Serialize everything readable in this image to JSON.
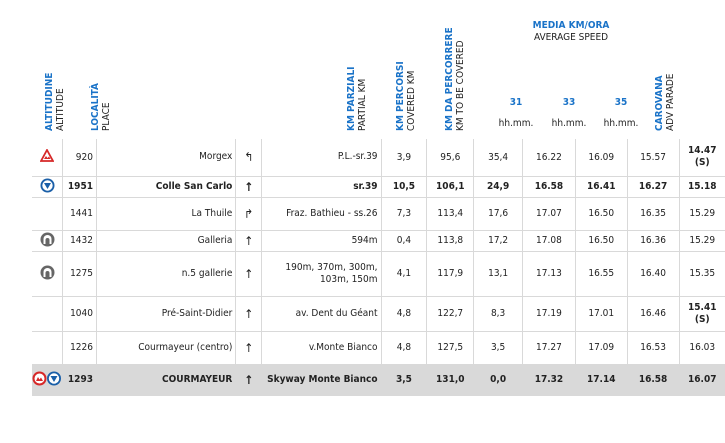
{
  "headers": {
    "altitude": {
      "it": "ALTITUDINE",
      "en": "ALTITUDE"
    },
    "place": {
      "it": "LOCALITÀ",
      "en": "PLACE"
    },
    "partial": {
      "it": "KM PARZIALI",
      "en": "PARTIAL KM"
    },
    "covered": {
      "it": "KM PERCORSI",
      "en": "COVERED KM"
    },
    "tobe": {
      "it": "KM DA PERCORRERE",
      "en": "KM TO BE COVERED"
    },
    "caravan": {
      "it": "CAROVANA",
      "en": "ADV PARADE"
    },
    "speed_title_it": "MEDIA KM/ORA",
    "speed_title_en": "AVERAGE SPEED",
    "speeds": [
      "31",
      "33",
      "35"
    ],
    "speed_unit": "hh.mm."
  },
  "rows": [
    {
      "icon": "warning-icon",
      "alt": "920",
      "place": "Morgex",
      "dir": "↰",
      "road": "P.L.-sr.39",
      "partial": "3,9",
      "covered": "95,6",
      "tobe": "35,4",
      "s31": "16.22",
      "s33": "16.09",
      "s35": "15.57",
      "caravan": "14.47",
      "caravan2": "(S)",
      "style": ""
    },
    {
      "icon": "gpm-icon",
      "alt": "1951",
      "place": "Colle San Carlo",
      "dir": "↑",
      "road": "sr.39",
      "partial": "10,5",
      "covered": "106,1",
      "tobe": "24,9",
      "s31": "16.58",
      "s33": "16.41",
      "s35": "16.27",
      "caravan": "15.18",
      "caravan2": "",
      "style": "bold"
    },
    {
      "icon": "",
      "alt": "1441",
      "place": "La Thuile",
      "dir": "↱",
      "road": "Fraz. Bathieu - ss.26",
      "partial": "7,3",
      "covered": "113,4",
      "tobe": "17,6",
      "s31": "17.07",
      "s33": "16.50",
      "s35": "16.35",
      "caravan": "15.29",
      "caravan2": "",
      "style": ""
    },
    {
      "icon": "tunnel-icon",
      "alt": "1432",
      "place": "Galleria",
      "dir": "↑",
      "road": "594m",
      "partial": "0,4",
      "covered": "113,8",
      "tobe": "17,2",
      "s31": "17.08",
      "s33": "16.50",
      "s35": "16.36",
      "caravan": "15.29",
      "caravan2": "",
      "style": ""
    },
    {
      "icon": "tunnel-icon",
      "alt": "1275",
      "place": "n.5 gallerie",
      "dir": "↑",
      "road": "190m, 370m, 300m, 103m, 150m",
      "partial": "4,1",
      "covered": "117,9",
      "tobe": "13,1",
      "s31": "17.13",
      "s33": "16.55",
      "s35": "16.40",
      "caravan": "15.35",
      "caravan2": "",
      "style": ""
    },
    {
      "icon": "",
      "alt": "1040",
      "place": "Pré-Saint-Didier",
      "dir": "↑",
      "road": "av. Dent du Géant",
      "partial": "4,8",
      "covered": "122,7",
      "tobe": "8,3",
      "s31": "17.19",
      "s33": "17.01",
      "s35": "16.46",
      "caravan": "15.41",
      "caravan2": "(S)",
      "style": ""
    },
    {
      "icon": "",
      "alt": "1226",
      "place": "Courmayeur (centro)",
      "dir": "↑",
      "road": "v.Monte Bianco",
      "partial": "4,8",
      "covered": "127,5",
      "tobe": "3,5",
      "s31": "17.27",
      "s33": "17.09",
      "s35": "16.53",
      "caravan": "16.03",
      "caravan2": "",
      "style": ""
    },
    {
      "icon": "finish-icons",
      "alt": "1293",
      "place": "COURMAYEUR",
      "dir": "↑",
      "road": "Skyway Monte Bianco",
      "partial": "3,5",
      "covered": "131,0",
      "tobe": "0,0",
      "s31": "17.32",
      "s33": "17.14",
      "s35": "16.58",
      "caravan": "16.07",
      "caravan2": "",
      "style": "hl"
    }
  ]
}
